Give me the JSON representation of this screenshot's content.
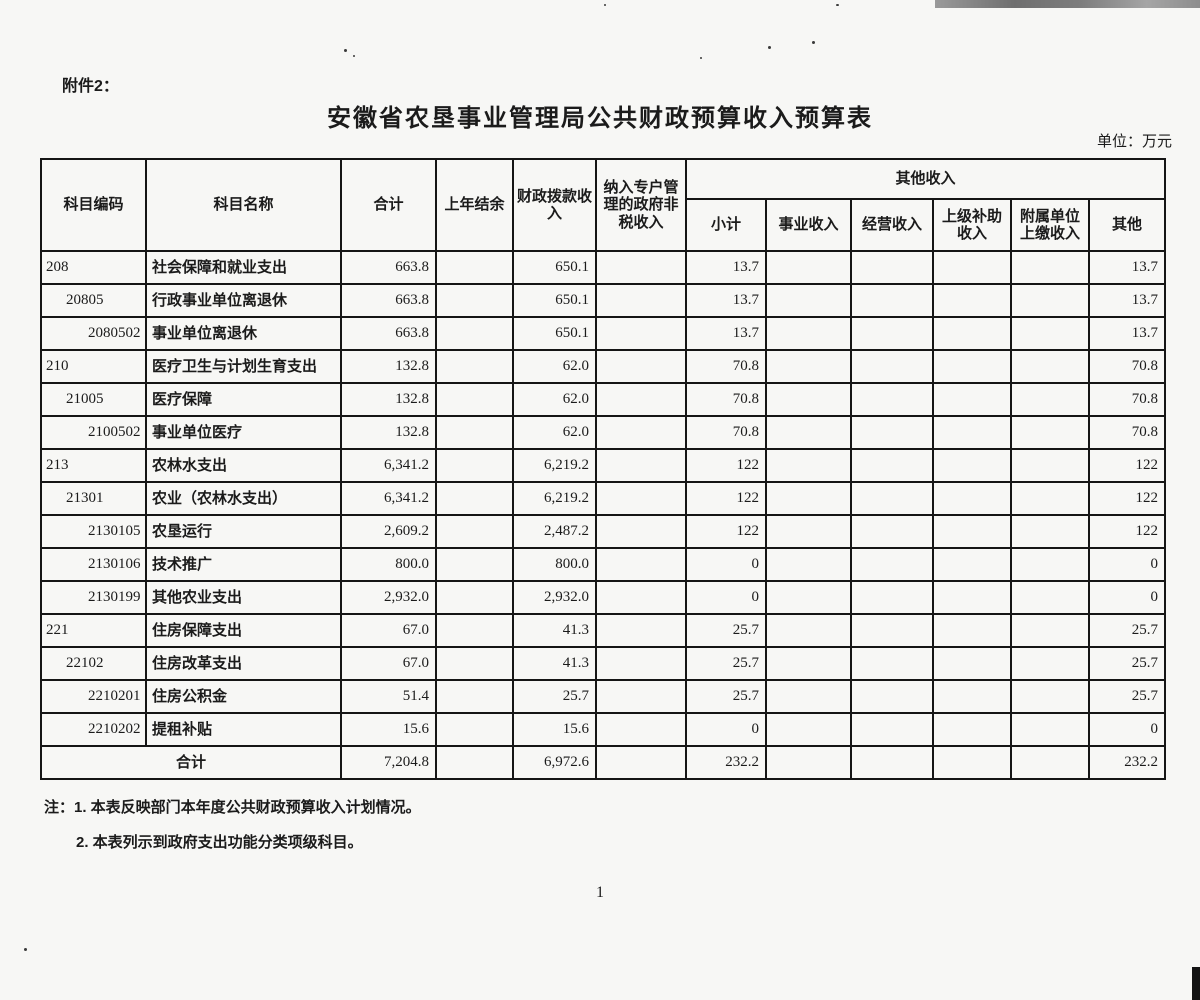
{
  "page": {
    "attachment_label": "附件2：",
    "title": "安徽省农垦事业管理局公共财政预算收入预算表",
    "unit_label": "单位：万元",
    "page_number": "1",
    "notes": {
      "line1": "注：1. 本表反映部门本年度公共财政预算收入计划情况。",
      "line2": "2. 本表列示到政府支出功能分类项级科目。"
    }
  },
  "table": {
    "headers": {
      "code": "科目编码",
      "name": "科目名称",
      "total": "合计",
      "prev_balance": "上年结余",
      "fiscal_appropriation": "财政拨款收入",
      "nontax": "纳入专户管理的政府非税收入",
      "other_income_group": "其他收入",
      "subtotal": "小计",
      "business_income": "事业收入",
      "operating_income": "经营收入",
      "superior_subsidy": "上级补助收入",
      "affiliate_remit": "附属单位上缴收入",
      "other": "其他"
    },
    "rows": [
      {
        "code": "208",
        "indent": 0,
        "name": "社会保障和就业支出",
        "values": [
          "663.8",
          "",
          "650.1",
          "",
          "13.7",
          "",
          "",
          "",
          "",
          "13.7"
        ]
      },
      {
        "code": "20805",
        "indent": 1,
        "name": "行政事业单位离退休",
        "values": [
          "663.8",
          "",
          "650.1",
          "",
          "13.7",
          "",
          "",
          "",
          "",
          "13.7"
        ]
      },
      {
        "code": "2080502",
        "indent": 2,
        "name": "事业单位离退休",
        "values": [
          "663.8",
          "",
          "650.1",
          "",
          "13.7",
          "",
          "",
          "",
          "",
          "13.7"
        ]
      },
      {
        "code": "210",
        "indent": 0,
        "name": "医疗卫生与计划生育支出",
        "values": [
          "132.8",
          "",
          "62.0",
          "",
          "70.8",
          "",
          "",
          "",
          "",
          "70.8"
        ]
      },
      {
        "code": "21005",
        "indent": 1,
        "name": "医疗保障",
        "values": [
          "132.8",
          "",
          "62.0",
          "",
          "70.8",
          "",
          "",
          "",
          "",
          "70.8"
        ]
      },
      {
        "code": "2100502",
        "indent": 2,
        "name": "事业单位医疗",
        "values": [
          "132.8",
          "",
          "62.0",
          "",
          "70.8",
          "",
          "",
          "",
          "",
          "70.8"
        ]
      },
      {
        "code": "213",
        "indent": 0,
        "name": "农林水支出",
        "values": [
          "6,341.2",
          "",
          "6,219.2",
          "",
          "122",
          "",
          "",
          "",
          "",
          "122"
        ]
      },
      {
        "code": "21301",
        "indent": 1,
        "name": "农业（农林水支出）",
        "values": [
          "6,341.2",
          "",
          "6,219.2",
          "",
          "122",
          "",
          "",
          "",
          "",
          "122"
        ]
      },
      {
        "code": "2130105",
        "indent": 2,
        "name": "农垦运行",
        "values": [
          "2,609.2",
          "",
          "2,487.2",
          "",
          "122",
          "",
          "",
          "",
          "",
          "122"
        ]
      },
      {
        "code": "2130106",
        "indent": 2,
        "name": "技术推广",
        "values": [
          "800.0",
          "",
          "800.0",
          "",
          "0",
          "",
          "",
          "",
          "",
          "0"
        ]
      },
      {
        "code": "2130199",
        "indent": 2,
        "name": "其他农业支出",
        "values": [
          "2,932.0",
          "",
          "2,932.0",
          "",
          "0",
          "",
          "",
          "",
          "",
          "0"
        ]
      },
      {
        "code": "221",
        "indent": 0,
        "name": "住房保障支出",
        "values": [
          "67.0",
          "",
          "41.3",
          "",
          "25.7",
          "",
          "",
          "",
          "",
          "25.7"
        ]
      },
      {
        "code": "22102",
        "indent": 1,
        "name": "住房改革支出",
        "values": [
          "67.0",
          "",
          "41.3",
          "",
          "25.7",
          "",
          "",
          "",
          "",
          "25.7"
        ]
      },
      {
        "code": "2210201",
        "indent": 2,
        "name": "住房公积金",
        "values": [
          "51.4",
          "",
          "25.7",
          "",
          "25.7",
          "",
          "",
          "",
          "",
          "25.7"
        ]
      },
      {
        "code": "2210202",
        "indent": 2,
        "name": "提租补贴",
        "values": [
          "15.6",
          "",
          "15.6",
          "",
          "0",
          "",
          "",
          "",
          "",
          "0"
        ]
      }
    ],
    "total_row": {
      "label": "合计",
      "values": [
        "7,204.8",
        "",
        "6,972.6",
        "",
        "232.2",
        "",
        "",
        "",
        "",
        "232.2"
      ]
    }
  },
  "colors": {
    "paper": "#f7f7f5",
    "border": "#151515",
    "ink": "#1b1b1b"
  }
}
